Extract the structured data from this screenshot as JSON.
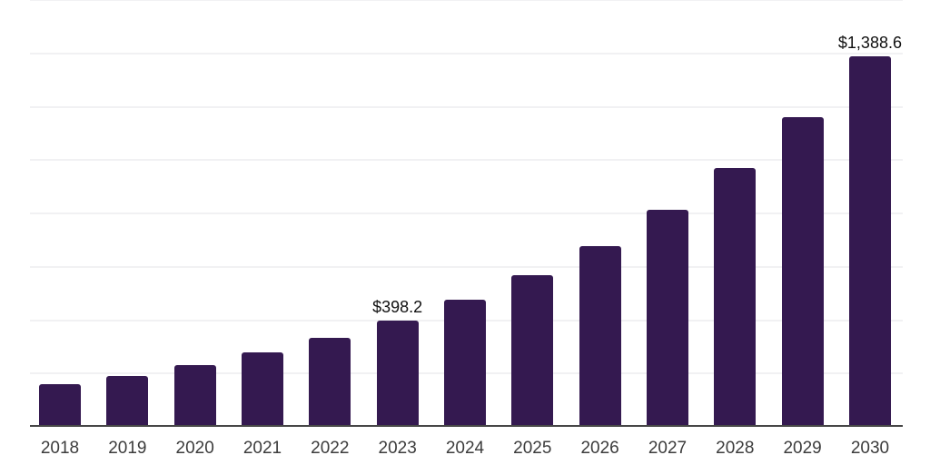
{
  "chart_data": {
    "type": "bar",
    "categories": [
      "2018",
      "2019",
      "2020",
      "2021",
      "2022",
      "2023",
      "2024",
      "2025",
      "2026",
      "2027",
      "2028",
      "2029",
      "2030"
    ],
    "values": [
      161,
      189,
      231,
      279,
      334,
      398.2,
      475,
      567,
      679,
      812,
      970,
      1161,
      1388.6
    ],
    "data_labels": [
      "",
      "",
      "",
      "",
      "",
      "$398.2",
      "",
      "",
      "",
      "",
      "",
      "",
      "$1,388.6"
    ],
    "unit_prefix": "$",
    "ylim": [
      0,
      1600
    ],
    "grid_step": 200,
    "grid": true,
    "legend": false,
    "colors": {
      "bar": "#341950",
      "gridline": "#f1f1f3",
      "axis_line": "#474747",
      "data_label": "#111111",
      "tick_label": "#3c3c3c",
      "background": "#ffffff"
    }
  }
}
